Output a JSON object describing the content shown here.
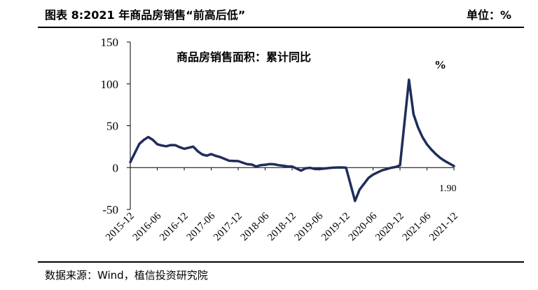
{
  "header": {
    "title": "图表 8:2021 年商品房销售“前高后低”",
    "unit": "单位：%"
  },
  "source": "数据来源：Wind，植信投资研究院",
  "chart_data": {
    "type": "line",
    "title": "商品房销售面积：累计同比",
    "unit_label": "%",
    "last_value_label": "1.90",
    "ylim": [
      -50,
      150
    ],
    "y_ticks": [
      -50,
      0,
      50,
      100,
      150
    ],
    "grid": false,
    "line_color": "#1f2d5a",
    "x_tick_labels": [
      "2015-12",
      "2016-06",
      "2016-12",
      "2017-06",
      "2017-12",
      "2018-06",
      "2018-12",
      "2019-06",
      "2019-12",
      "2020-06",
      "2020-12",
      "2021-06",
      "2021-12"
    ],
    "x": [
      "2015-12",
      "2016-02",
      "2016-03",
      "2016-04",
      "2016-05",
      "2016-06",
      "2016-07",
      "2016-08",
      "2016-09",
      "2016-10",
      "2016-11",
      "2016-12",
      "2017-02",
      "2017-03",
      "2017-04",
      "2017-05",
      "2017-06",
      "2017-07",
      "2017-08",
      "2017-09",
      "2017-10",
      "2017-11",
      "2017-12",
      "2018-02",
      "2018-03",
      "2018-04",
      "2018-05",
      "2018-06",
      "2018-07",
      "2018-08",
      "2018-09",
      "2018-10",
      "2018-11",
      "2018-12",
      "2019-02",
      "2019-03",
      "2019-04",
      "2019-05",
      "2019-06",
      "2019-07",
      "2019-08",
      "2019-09",
      "2019-10",
      "2019-11",
      "2019-12",
      "2020-02",
      "2020-03",
      "2020-04",
      "2020-05",
      "2020-06",
      "2020-07",
      "2020-08",
      "2020-09",
      "2020-10",
      "2020-11",
      "2020-12",
      "2021-02",
      "2021-03",
      "2021-04",
      "2021-05",
      "2021-06",
      "2021-07",
      "2021-08",
      "2021-09",
      "2021-10",
      "2021-11",
      "2021-12"
    ],
    "series": [
      {
        "values": [
          6.5,
          28.2,
          33.1,
          36.5,
          33.2,
          27.9,
          26.4,
          25.5,
          26.9,
          26.8,
          24.3,
          22.5,
          25.1,
          19.5,
          15.7,
          14.3,
          16.1,
          14.0,
          12.6,
          10.3,
          8.2,
          7.9,
          7.7,
          4.1,
          3.6,
          1.3,
          2.9,
          3.3,
          4.2,
          4.0,
          2.9,
          2.2,
          1.4,
          1.3,
          -3.6,
          -0.9,
          -0.3,
          -1.6,
          -1.8,
          -1.3,
          -0.6,
          -0.1,
          0.1,
          0.2,
          -0.1,
          -39.9,
          -26.3,
          -19.3,
          -12.3,
          -8.4,
          -5.8,
          -3.3,
          -1.8,
          -0.3,
          0.7,
          2.6,
          104.9,
          63.8,
          48.1,
          36.4,
          27.7,
          21.5,
          15.9,
          11.3,
          7.8,
          4.8,
          1.9
        ]
      }
    ]
  }
}
